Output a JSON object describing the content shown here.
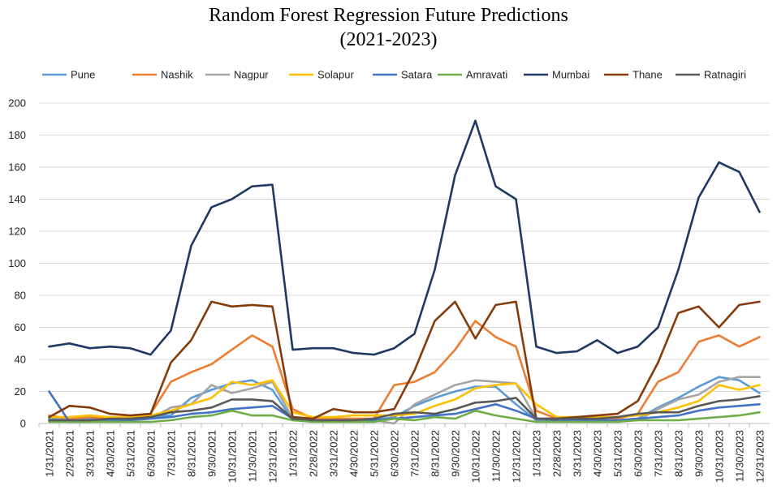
{
  "chart_data": {
    "type": "line",
    "title": "Random Forest Regression Future Predictions",
    "subtitle": "(2021-2023)",
    "xlabel": "",
    "ylabel": "",
    "ylim": [
      0,
      200
    ],
    "yticks": [
      0,
      20,
      40,
      60,
      80,
      100,
      120,
      140,
      160,
      180,
      200
    ],
    "grid": "horizontal",
    "legend_position": "top",
    "categories": [
      "1/31/2021",
      "2/29/2021",
      "3/31/2021",
      "4/30/2021",
      "5/31/2021",
      "6/30/2021",
      "7/31/2021",
      "8/31/2021",
      "9/30/2021",
      "10/31/2021",
      "11/30/2021",
      "12/31/2021",
      "1/31/2022",
      "2/28/2022",
      "3/31/2022",
      "4/30/2022",
      "5/31/2022",
      "6/30/2022",
      "7/31/2022",
      "8/31/2022",
      "9/30/2022",
      "10/31/2022",
      "11/30/2022",
      "12/31/2022",
      "1/31/2023",
      "2/28/2023",
      "3/31/2023",
      "4/30/2023",
      "5/31/2023",
      "6/30/2023",
      "7/31/2023",
      "8/31/2023",
      "9/30/2023",
      "10/31/2023",
      "11/30/2023",
      "12/31/2023"
    ],
    "series": [
      {
        "name": "Pune",
        "color": "#5B9BD5",
        "values": [
          3,
          3,
          3,
          3,
          3,
          4,
          5,
          16,
          21,
          25,
          27,
          21,
          2,
          2,
          2,
          2,
          2,
          4,
          11,
          16,
          20,
          23,
          23,
          12,
          2,
          2,
          2,
          2,
          2,
          3,
          10,
          16,
          23,
          29,
          27,
          19
        ]
      },
      {
        "name": "Nashik",
        "color": "#ED7D31",
        "values": [
          5,
          3,
          4,
          3,
          3,
          6,
          26,
          32,
          37,
          46,
          55,
          48,
          9,
          3,
          3,
          3,
          3,
          24,
          26,
          32,
          46,
          64,
          54,
          48,
          8,
          3,
          3,
          3,
          3,
          6,
          26,
          32,
          51,
          55,
          48,
          54
        ]
      },
      {
        "name": "Nagpur",
        "color": "#A5A5A5",
        "values": [
          2,
          2,
          2,
          2,
          2,
          3,
          10,
          12,
          24,
          19,
          22,
          26,
          3,
          2,
          2,
          2,
          2,
          0,
          12,
          18,
          24,
          27,
          26,
          25,
          3,
          2,
          2,
          2,
          2,
          2,
          9,
          15,
          18,
          26,
          29,
          29
        ]
      },
      {
        "name": "Solapur",
        "color": "#FFC000",
        "values": [
          4,
          4,
          5,
          4,
          4,
          5,
          8,
          12,
          16,
          26,
          24,
          27,
          7,
          4,
          4,
          5,
          5,
          5,
          6,
          11,
          15,
          22,
          24,
          25,
          12,
          4,
          4,
          4,
          4,
          5,
          7,
          10,
          14,
          24,
          21,
          24
        ]
      },
      {
        "name": "Satara",
        "color": "#4472C4",
        "values": [
          20,
          1,
          1,
          2,
          2,
          3,
          4,
          6,
          7,
          9,
          10,
          11,
          3,
          2,
          2,
          2,
          2,
          3,
          4,
          5,
          6,
          9,
          12,
          8,
          3,
          2,
          2,
          2,
          2,
          3,
          4,
          5,
          8,
          10,
          11,
          12
        ]
      },
      {
        "name": "Amravati",
        "color": "#70AD47",
        "values": [
          1,
          1,
          1,
          1,
          1,
          1,
          2,
          4,
          5,
          8,
          5,
          5,
          2,
          1,
          1,
          1,
          1,
          3,
          2,
          4,
          3,
          8,
          5,
          3,
          1,
          1,
          1,
          1,
          1,
          2,
          2,
          2,
          3,
          4,
          5,
          7
        ]
      },
      {
        "name": "Mumbai",
        "color": "#1F3864",
        "values": [
          48,
          50,
          47,
          48,
          47,
          43,
          58,
          111,
          135,
          140,
          148,
          149,
          46,
          47,
          47,
          44,
          43,
          47,
          56,
          96,
          155,
          189,
          148,
          140,
          48,
          44,
          45,
          52,
          44,
          48,
          60,
          96,
          141,
          163,
          157,
          132
        ]
      },
      {
        "name": "Thane",
        "color": "#843C0C",
        "values": [
          4,
          11,
          10,
          6,
          5,
          6,
          38,
          52,
          76,
          73,
          74,
          73,
          4,
          3,
          9,
          7,
          7,
          9,
          33,
          64,
          76,
          53,
          74,
          76,
          3,
          3,
          4,
          5,
          6,
          14,
          38,
          69,
          73,
          60,
          74,
          76
        ]
      },
      {
        "name": "Ratnagiri",
        "color": "#595959",
        "values": [
          2,
          2,
          2,
          3,
          3,
          4,
          7,
          8,
          10,
          15,
          15,
          14,
          3,
          2,
          2,
          2,
          3,
          6,
          7,
          6,
          9,
          13,
          14,
          16,
          3,
          3,
          3,
          3,
          4,
          6,
          7,
          7,
          11,
          14,
          15,
          17
        ]
      }
    ]
  }
}
